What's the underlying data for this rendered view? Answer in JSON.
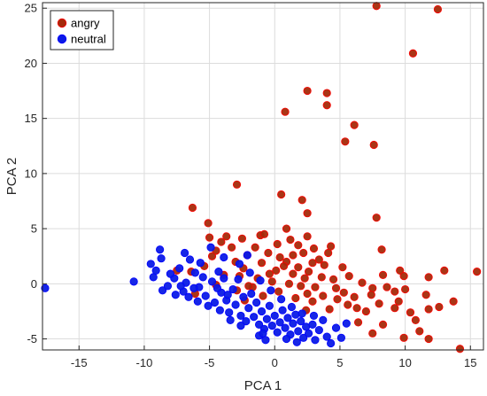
{
  "chart_data": {
    "type": "scatter",
    "title": "",
    "xlabel": "PCA 1",
    "ylabel": "PCA 2",
    "xlim": [
      -17.8,
      16
    ],
    "ylim": [
      -6,
      25.5
    ],
    "xticks": [
      -15,
      -10,
      -5,
      0,
      5,
      10,
      15
    ],
    "yticks": [
      -5,
      0,
      5,
      10,
      15,
      20,
      25
    ],
    "grid": true,
    "legend_position": "top-left",
    "series": [
      {
        "name": "angry",
        "color": "#a52a0a",
        "marker_edge": "#ff0000",
        "points": [
          [
            7.8,
            25.2
          ],
          [
            12.5,
            24.9
          ],
          [
            10.6,
            20.9
          ],
          [
            2.5,
            17.5
          ],
          [
            4.0,
            17.3
          ],
          [
            4.0,
            16.2
          ],
          [
            0.8,
            15.6
          ],
          [
            6.1,
            14.4
          ],
          [
            5.4,
            12.9
          ],
          [
            7.6,
            12.6
          ],
          [
            -2.9,
            9.0
          ],
          [
            0.5,
            8.1
          ],
          [
            2.1,
            7.6
          ],
          [
            -6.3,
            6.9
          ],
          [
            2.5,
            6.4
          ],
          [
            7.8,
            6.0
          ],
          [
            -5.1,
            5.5
          ],
          [
            0.9,
            5.0
          ],
          [
            -1.1,
            4.4
          ],
          [
            -5.0,
            4.2
          ],
          [
            -3.7,
            4.3
          ],
          [
            -0.8,
            4.5
          ],
          [
            -2.5,
            4.1
          ],
          [
            1.2,
            4.0
          ],
          [
            2.5,
            4.3
          ],
          [
            -4.1,
            3.8
          ],
          [
            -1.5,
            3.3
          ],
          [
            1.8,
            3.5
          ],
          [
            -3.3,
            3.3
          ],
          [
            0.2,
            3.6
          ],
          [
            3.0,
            3.2
          ],
          [
            4.3,
            3.4
          ],
          [
            -0.5,
            2.8
          ],
          [
            2.2,
            2.8
          ],
          [
            -2.1,
            2.6
          ],
          [
            -4.5,
            3.0
          ],
          [
            1.4,
            2.6
          ],
          [
            0.4,
            2.4
          ],
          [
            3.4,
            2.2
          ],
          [
            -3.0,
            2.0
          ],
          [
            0.9,
            2.0
          ],
          [
            8.2,
            3.1
          ],
          [
            -1.0,
            1.9
          ],
          [
            1.8,
            1.5
          ],
          [
            2.6,
            1.1
          ],
          [
            3.8,
            1.7
          ],
          [
            -2.4,
            1.4
          ],
          [
            0.1,
            1.2
          ],
          [
            5.2,
            1.5
          ],
          [
            -5.4,
            1.6
          ],
          [
            -0.4,
            0.9
          ],
          [
            1.4,
            0.9
          ],
          [
            -2.7,
            0.7
          ],
          [
            2.3,
            0.5
          ],
          [
            3.6,
            0.6
          ],
          [
            -3.9,
            0.8
          ],
          [
            4.5,
            0.4
          ],
          [
            5.7,
            0.7
          ],
          [
            8.3,
            0.8
          ],
          [
            9.6,
            1.2
          ],
          [
            9.9,
            0.7
          ],
          [
            11.8,
            0.6
          ],
          [
            13.0,
            1.2
          ],
          [
            15.5,
            1.1
          ],
          [
            -7.5,
            1.2
          ],
          [
            -6.4,
            1.1
          ],
          [
            -0.2,
            0.2
          ],
          [
            1.1,
            0.0
          ],
          [
            2.0,
            -0.2
          ],
          [
            -1.7,
            -0.3
          ],
          [
            3.1,
            -0.3
          ],
          [
            4.7,
            -0.4
          ],
          [
            -4.5,
            -0.1
          ],
          [
            6.7,
            0.1
          ],
          [
            7.5,
            -0.4
          ],
          [
            0.3,
            -0.7
          ],
          [
            2.5,
            -0.9
          ],
          [
            -2.9,
            -0.6
          ],
          [
            5.3,
            -0.8
          ],
          [
            8.6,
            -0.3
          ],
          [
            9.2,
            -0.7
          ],
          [
            10.0,
            -0.5
          ],
          [
            -0.9,
            -1.1
          ],
          [
            1.6,
            -1.3
          ],
          [
            3.7,
            -1.1
          ],
          [
            4.8,
            -1.4
          ],
          [
            6.1,
            -1.2
          ],
          [
            7.4,
            -1.0
          ],
          [
            11.6,
            -1.0
          ],
          [
            -6.1,
            -0.9
          ],
          [
            2.9,
            -1.6
          ],
          [
            -2.3,
            -1.5
          ],
          [
            5.6,
            -1.9
          ],
          [
            8.0,
            -1.8
          ],
          [
            9.5,
            -1.6
          ],
          [
            12.6,
            -2.1
          ],
          [
            13.7,
            -1.6
          ],
          [
            2.4,
            -2.4
          ],
          [
            4.2,
            -2.3
          ],
          [
            6.3,
            -2.2
          ],
          [
            7.0,
            -2.5
          ],
          [
            9.2,
            -2.2
          ],
          [
            10.4,
            -2.6
          ],
          [
            11.8,
            -2.3
          ],
          [
            6.4,
            -3.5
          ],
          [
            8.3,
            -3.7
          ],
          [
            10.8,
            -3.3
          ],
          [
            11.1,
            -4.3
          ],
          [
            7.5,
            -4.5
          ],
          [
            9.9,
            -4.9
          ],
          [
            11.8,
            -5.0
          ],
          [
            14.2,
            -5.9
          ],
          [
            -2.0,
            -0.2
          ],
          [
            -1.3,
            0.5
          ],
          [
            0.7,
            1.6
          ],
          [
            2.9,
            1.9
          ],
          [
            4.1,
            2.8
          ],
          [
            -4.8,
            2.5
          ]
        ]
      },
      {
        "name": "neutral",
        "color": "#0a1ae6",
        "marker_edge": "#0000ff",
        "points": [
          [
            -17.6,
            -0.4
          ],
          [
            -10.8,
            0.2
          ],
          [
            -9.5,
            1.8
          ],
          [
            -8.8,
            3.1
          ],
          [
            -8.7,
            2.3
          ],
          [
            -9.3,
            0.6
          ],
          [
            -8.6,
            -0.6
          ],
          [
            -7.7,
            0.5
          ],
          [
            -7.3,
            1.4
          ],
          [
            -6.8,
            0.1
          ],
          [
            -7.0,
            -0.7
          ],
          [
            -6.5,
            2.2
          ],
          [
            -6.1,
            1.0
          ],
          [
            -5.8,
            -0.3
          ],
          [
            -5.5,
            0.6
          ],
          [
            -5.3,
            -1.1
          ],
          [
            -4.8,
            0.2
          ],
          [
            -4.6,
            -1.7
          ],
          [
            -4.3,
            1.1
          ],
          [
            -4.1,
            -0.8
          ],
          [
            -3.9,
            0.5
          ],
          [
            -3.7,
            -1.5
          ],
          [
            -3.5,
            -2.6
          ],
          [
            -3.2,
            -0.5
          ],
          [
            -3.0,
            -1.9
          ],
          [
            -2.8,
            0.4
          ],
          [
            -2.6,
            -2.9
          ],
          [
            -2.4,
            -1.2
          ],
          [
            -2.2,
            -3.4
          ],
          [
            -2.0,
            -2.2
          ],
          [
            -1.8,
            -0.9
          ],
          [
            -1.6,
            -3.0
          ],
          [
            -1.4,
            -1.7
          ],
          [
            -1.2,
            -3.7
          ],
          [
            -1.0,
            -2.5
          ],
          [
            -0.8,
            -4.1
          ],
          [
            -0.6,
            -3.2
          ],
          [
            -0.4,
            -2.0
          ],
          [
            -0.2,
            -3.8
          ],
          [
            0.0,
            -2.9
          ],
          [
            0.2,
            -4.4
          ],
          [
            0.4,
            -3.5
          ],
          [
            0.6,
            -2.4
          ],
          [
            0.8,
            -4.0
          ],
          [
            1.0,
            -3.1
          ],
          [
            1.2,
            -4.6
          ],
          [
            1.4,
            -3.6
          ],
          [
            1.6,
            -2.8
          ],
          [
            1.8,
            -4.3
          ],
          [
            2.0,
            -3.4
          ],
          [
            2.2,
            -4.9
          ],
          [
            2.4,
            -3.9
          ],
          [
            2.6,
            -4.5
          ],
          [
            2.9,
            -3.7
          ],
          [
            3.1,
            -5.1
          ],
          [
            3.4,
            -4.2
          ],
          [
            3.7,
            -3.3
          ],
          [
            4.0,
            -4.8
          ],
          [
            4.3,
            -5.4
          ],
          [
            4.7,
            -4.0
          ],
          [
            5.1,
            -4.9
          ],
          [
            5.5,
            -3.6
          ],
          [
            -1.2,
            -4.7
          ],
          [
            -0.7,
            -5.1
          ],
          [
            -2.6,
            -3.8
          ],
          [
            -3.4,
            -3.3
          ],
          [
            -4.2,
            -2.4
          ],
          [
            -5.1,
            -2.0
          ],
          [
            -5.9,
            -1.6
          ],
          [
            -6.6,
            -1.2
          ],
          [
            -7.6,
            -1.0
          ],
          [
            -8.2,
            -0.2
          ],
          [
            -9.1,
            1.2
          ],
          [
            -4.9,
            3.3
          ],
          [
            -3.9,
            2.4
          ],
          [
            -2.7,
            1.8
          ],
          [
            -1.9,
            1.0
          ],
          [
            -1.1,
            0.3
          ],
          [
            -0.3,
            -0.6
          ],
          [
            0.5,
            -1.4
          ],
          [
            1.3,
            -2.1
          ],
          [
            2.1,
            -2.7
          ],
          [
            3.0,
            -2.9
          ],
          [
            -6.9,
            2.8
          ],
          [
            -5.7,
            1.9
          ],
          [
            -4.4,
            -0.4
          ],
          [
            -3.6,
            -1.0
          ],
          [
            -2.1,
            2.6
          ],
          [
            -0.9,
            -4.5
          ],
          [
            0.9,
            -5.0
          ],
          [
            1.7,
            -5.3
          ],
          [
            -7.2,
            -0.2
          ],
          [
            -8.0,
            0.9
          ],
          [
            -6.2,
            -0.4
          ]
        ]
      }
    ]
  }
}
